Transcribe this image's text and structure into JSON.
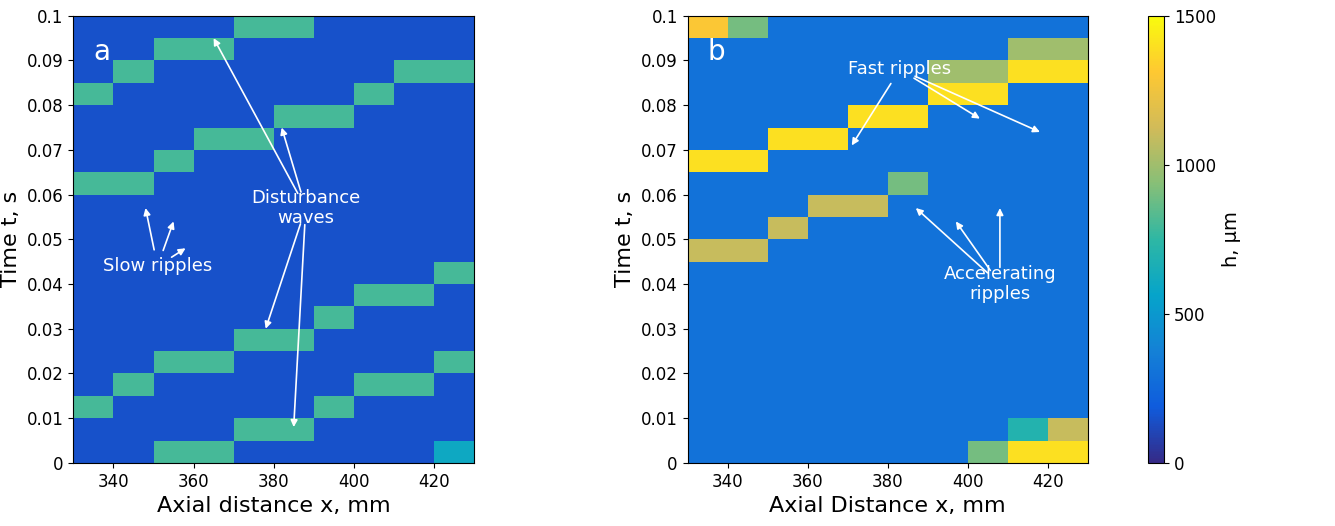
{
  "chart_data": [
    {
      "type": "heatmap",
      "panel_label": "a",
      "xlabel": "Axial distance x, mm",
      "ylabel": "Time t, s",
      "xlim": [
        330,
        430
      ],
      "ylim": [
        0,
        0.1
      ],
      "xticks": [
        340,
        360,
        380,
        400,
        420
      ],
      "yticks": [
        0,
        0.01,
        0.02,
        0.03,
        0.04,
        0.05,
        0.06,
        0.07,
        0.08,
        0.09,
        0.1
      ],
      "x_edges": [
        330,
        340,
        350,
        360,
        370,
        380,
        390,
        400,
        410,
        420,
        430
      ],
      "y_edges": [
        0,
        0.005,
        0.01,
        0.015,
        0.02,
        0.025,
        0.03,
        0.035,
        0.04,
        0.045,
        0.05,
        0.055,
        0.06,
        0.065,
        0.07,
        0.075,
        0.08,
        0.085,
        0.09,
        0.095,
        0.1
      ],
      "cells": [
        [
          150,
          150,
          800,
          800,
          150,
          150,
          150,
          150,
          150,
          600
        ],
        [
          150,
          150,
          150,
          150,
          800,
          800,
          150,
          150,
          150,
          150
        ],
        [
          800,
          150,
          150,
          150,
          150,
          150,
          800,
          150,
          150,
          150
        ],
        [
          150,
          800,
          150,
          150,
          150,
          150,
          150,
          800,
          800,
          150
        ],
        [
          150,
          150,
          800,
          800,
          150,
          150,
          150,
          150,
          150,
          800
        ],
        [
          150,
          150,
          150,
          150,
          800,
          800,
          150,
          150,
          150,
          150
        ],
        [
          150,
          150,
          150,
          150,
          150,
          150,
          800,
          150,
          150,
          150
        ],
        [
          150,
          150,
          150,
          150,
          150,
          150,
          150,
          800,
          800,
          150
        ],
        [
          150,
          150,
          150,
          150,
          150,
          150,
          150,
          150,
          150,
          800
        ],
        [
          150,
          150,
          150,
          150,
          150,
          150,
          150,
          150,
          150,
          150
        ],
        [
          150,
          150,
          150,
          150,
          150,
          150,
          150,
          150,
          150,
          150
        ],
        [
          150,
          150,
          150,
          150,
          150,
          150,
          150,
          150,
          150,
          150
        ],
        [
          800,
          800,
          150,
          150,
          150,
          150,
          150,
          150,
          150,
          150
        ],
        [
          150,
          150,
          800,
          150,
          150,
          150,
          150,
          150,
          150,
          150
        ],
        [
          150,
          150,
          150,
          800,
          800,
          150,
          150,
          150,
          150,
          150
        ],
        [
          150,
          150,
          150,
          150,
          150,
          800,
          800,
          150,
          150,
          150
        ],
        [
          800,
          150,
          150,
          150,
          150,
          150,
          150,
          800,
          150,
          150
        ],
        [
          150,
          800,
          150,
          150,
          150,
          150,
          150,
          150,
          800,
          800
        ],
        [
          150,
          150,
          800,
          800,
          150,
          150,
          150,
          150,
          150,
          150
        ],
        [
          150,
          150,
          150,
          150,
          800,
          800,
          150,
          150,
          150,
          150
        ]
      ],
      "annotations": [
        {
          "text": "Slow ripples",
          "x": 351,
          "y": 0.044,
          "arrows": [
            [
              348,
              0.057
            ],
            [
              355,
              0.054
            ],
            [
              358,
              0.048
            ]
          ]
        },
        {
          "text": "Disturbance\nwaves",
          "x": 388,
          "y": 0.057,
          "arrows": [
            [
              365,
              0.095
            ],
            [
              382,
              0.075
            ],
            [
              378,
              0.03
            ],
            [
              385,
              0.008
            ]
          ]
        }
      ]
    },
    {
      "type": "heatmap",
      "panel_label": "b",
      "xlabel": "Axial Distance x, mm",
      "ylabel": "Time t, s",
      "xlim": [
        330,
        430
      ],
      "ylim": [
        0,
        0.1
      ],
      "xticks": [
        340,
        360,
        380,
        400,
        420
      ],
      "yticks": [
        0,
        0.01,
        0.02,
        0.03,
        0.04,
        0.05,
        0.06,
        0.07,
        0.08,
        0.09,
        0.1
      ],
      "x_edges": [
        330,
        340,
        350,
        360,
        370,
        380,
        390,
        400,
        410,
        420,
        430
      ],
      "y_edges": [
        0,
        0.005,
        0.01,
        0.015,
        0.02,
        0.025,
        0.03,
        0.035,
        0.04,
        0.045,
        0.05,
        0.055,
        0.06,
        0.065,
        0.07,
        0.075,
        0.08,
        0.085,
        0.09,
        0.095,
        0.1
      ],
      "cells": [
        [
          300,
          300,
          300,
          300,
          300,
          300,
          300,
          900,
          1400,
          1400
        ],
        [
          300,
          300,
          300,
          300,
          300,
          300,
          300,
          300,
          700,
          1100
        ],
        [
          300,
          300,
          300,
          300,
          300,
          300,
          300,
          300,
          300,
          300
        ],
        [
          300,
          300,
          300,
          300,
          300,
          300,
          300,
          300,
          300,
          300
        ],
        [
          300,
          300,
          300,
          300,
          300,
          300,
          300,
          300,
          300,
          300
        ],
        [
          300,
          300,
          300,
          300,
          300,
          300,
          300,
          300,
          300,
          300
        ],
        [
          300,
          300,
          300,
          300,
          300,
          300,
          300,
          300,
          300,
          300
        ],
        [
          300,
          300,
          300,
          300,
          300,
          300,
          300,
          300,
          300,
          300
        ],
        [
          300,
          300,
          300,
          300,
          300,
          300,
          300,
          300,
          300,
          300
        ],
        [
          1100,
          1100,
          300,
          300,
          300,
          300,
          300,
          300,
          300,
          300
        ],
        [
          300,
          300,
          1100,
          300,
          300,
          300,
          300,
          300,
          300,
          300
        ],
        [
          300,
          300,
          300,
          1100,
          1100,
          300,
          300,
          300,
          300,
          300
        ],
        [
          300,
          300,
          300,
          300,
          300,
          900,
          300,
          300,
          300,
          300
        ],
        [
          1400,
          1400,
          300,
          300,
          300,
          300,
          300,
          300,
          300,
          300
        ],
        [
          300,
          300,
          1400,
          1400,
          300,
          300,
          300,
          300,
          300,
          300
        ],
        [
          300,
          300,
          300,
          300,
          1400,
          1400,
          300,
          300,
          300,
          300
        ],
        [
          300,
          300,
          300,
          300,
          300,
          300,
          1400,
          1400,
          300,
          300
        ],
        [
          300,
          300,
          300,
          300,
          300,
          300,
          1000,
          1000,
          1400,
          1400
        ],
        [
          300,
          300,
          300,
          300,
          300,
          300,
          300,
          300,
          1000,
          1000
        ],
        [
          1300,
          900,
          300,
          300,
          300,
          300,
          300,
          300,
          300,
          300
        ]
      ],
      "annotations": [
        {
          "text": "Fast ripples",
          "x": 383,
          "y": 0.088,
          "arrows": [
            [
              371,
              0.071
            ],
            [
              403,
              0.077
            ],
            [
              418,
              0.074
            ]
          ]
        },
        {
          "text": "Accelerating\nripples",
          "x": 408,
          "y": 0.04,
          "arrows": [
            [
              387,
              0.057
            ],
            [
              397,
              0.054
            ],
            [
              408,
              0.057
            ]
          ]
        }
      ]
    }
  ],
  "colorbar": {
    "label": "h, μm",
    "range": [
      0,
      1500
    ],
    "ticks": [
      0,
      500,
      1000,
      1500
    ]
  }
}
